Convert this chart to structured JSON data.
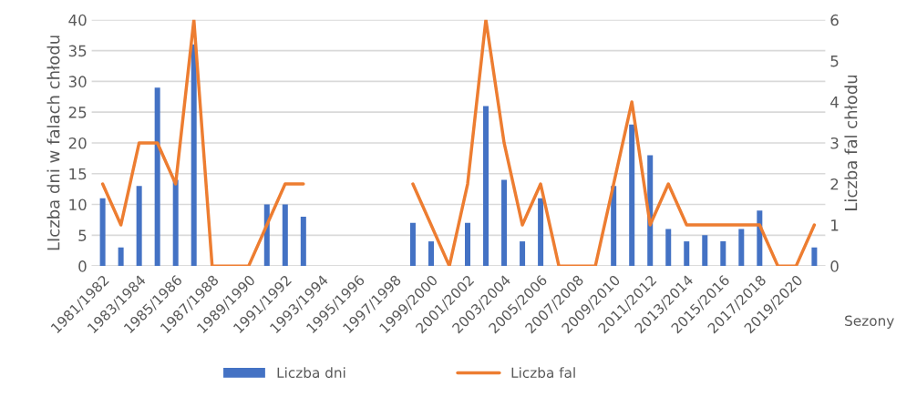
{
  "chart_data": {
    "type": "bar",
    "xlabel": "Sezony",
    "ylabel": "LIczba dni w falach chłodu",
    "y2label": "Liczba fal chłodu",
    "categories": [
      "1981/1982",
      null,
      "1983/1984",
      null,
      "1985/1986",
      null,
      "1987/1988",
      null,
      "1989/1990",
      null,
      "1991/1992",
      null,
      "1993/1994",
      null,
      "1995/1996",
      null,
      "1997/1998",
      null,
      "1999/2000",
      null,
      "2001/2002",
      null,
      "2003/2004",
      null,
      "2005/2006",
      null,
      "2007/2008",
      null,
      "2009/2010",
      null,
      "2011/2012",
      null,
      "2013/2014",
      null,
      "2015/2016",
      null,
      "2017/2018",
      null,
      "2019/2020",
      null
    ],
    "series": [
      {
        "name": "Liczba dni",
        "color": "#4472c4",
        "values": [
          11,
          3,
          13,
          29,
          14,
          36,
          0,
          0,
          0,
          10,
          10,
          8,
          null,
          null,
          null,
          null,
          null,
          7,
          4,
          0,
          7,
          26,
          14,
          4,
          11,
          0,
          0,
          0,
          13,
          23,
          18,
          6,
          4,
          5,
          4,
          6,
          9,
          0,
          0,
          3
        ]
      },
      {
        "name": "Liczba fal",
        "type": "line",
        "axis": "y2",
        "color": "#ed7d31",
        "values": [
          2,
          1,
          3,
          3,
          2,
          6,
          0,
          0,
          0,
          1,
          2,
          2,
          null,
          null,
          null,
          null,
          null,
          2,
          1,
          0,
          2,
          6,
          3,
          1,
          2,
          0,
          0,
          0,
          2,
          4,
          1,
          2,
          1,
          1,
          1,
          1,
          1,
          0,
          0,
          1
        ]
      }
    ],
    "ylim": [
      0,
      40
    ],
    "yticks": [
      0,
      5,
      10,
      15,
      20,
      25,
      30,
      35,
      40
    ],
    "y2lim": [
      0,
      6
    ],
    "y2ticks": [
      0,
      1,
      2,
      3,
      4,
      5,
      6
    ],
    "grid": "y",
    "legend": "bottom",
    "marker": "none",
    "line_style": "solid"
  }
}
